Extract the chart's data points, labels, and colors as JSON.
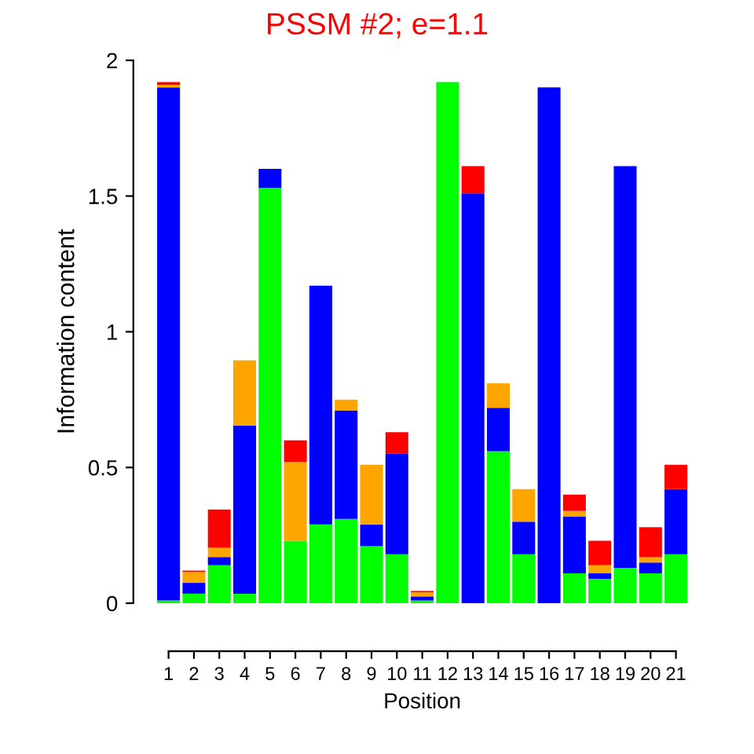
{
  "chart_data": {
    "type": "bar",
    "stacked": true,
    "title": "PSSM #2; e=1.1",
    "xlabel": "Position",
    "ylabel": "Information content",
    "categories": [
      "1",
      "2",
      "3",
      "4",
      "5",
      "6",
      "7",
      "8",
      "9",
      "10",
      "11",
      "12",
      "13",
      "14",
      "15",
      "16",
      "17",
      "18",
      "19",
      "20",
      "21"
    ],
    "series": [
      {
        "color": "#00ff00",
        "values": [
          0.01,
          0.035,
          0.14,
          0.035,
          1.53,
          0.23,
          0.29,
          0.31,
          0.21,
          0.18,
          0.01,
          1.92,
          0.0,
          0.56,
          0.18,
          0.0,
          0.11,
          0.09,
          0.13,
          0.11,
          0.18
        ]
      },
      {
        "color": "#0000ff",
        "values": [
          1.89,
          0.04,
          0.03,
          0.62,
          0.07,
          0.0,
          0.88,
          0.4,
          0.08,
          0.37,
          0.015,
          0.0,
          1.51,
          0.16,
          0.12,
          1.9,
          0.21,
          0.02,
          1.48,
          0.04,
          0.24
        ]
      },
      {
        "color": "#ffa500",
        "values": [
          0.01,
          0.04,
          0.035,
          0.24,
          0.0,
          0.29,
          0.0,
          0.04,
          0.22,
          0.0,
          0.015,
          0.0,
          0.0,
          0.09,
          0.12,
          0.0,
          0.02,
          0.03,
          0.0,
          0.02,
          0.0
        ]
      },
      {
        "color": "#ff0000",
        "values": [
          0.01,
          0.005,
          0.14,
          0.0,
          0.0,
          0.08,
          0.0,
          0.0,
          0.0,
          0.08,
          0.005,
          0.0,
          0.1,
          0.0,
          0.0,
          0.0,
          0.06,
          0.09,
          0.0,
          0.11,
          0.09
        ]
      }
    ],
    "ylim": [
      0,
      2
    ],
    "yticks": [
      0,
      0.5,
      1,
      1.5,
      2
    ],
    "grid": false
  }
}
